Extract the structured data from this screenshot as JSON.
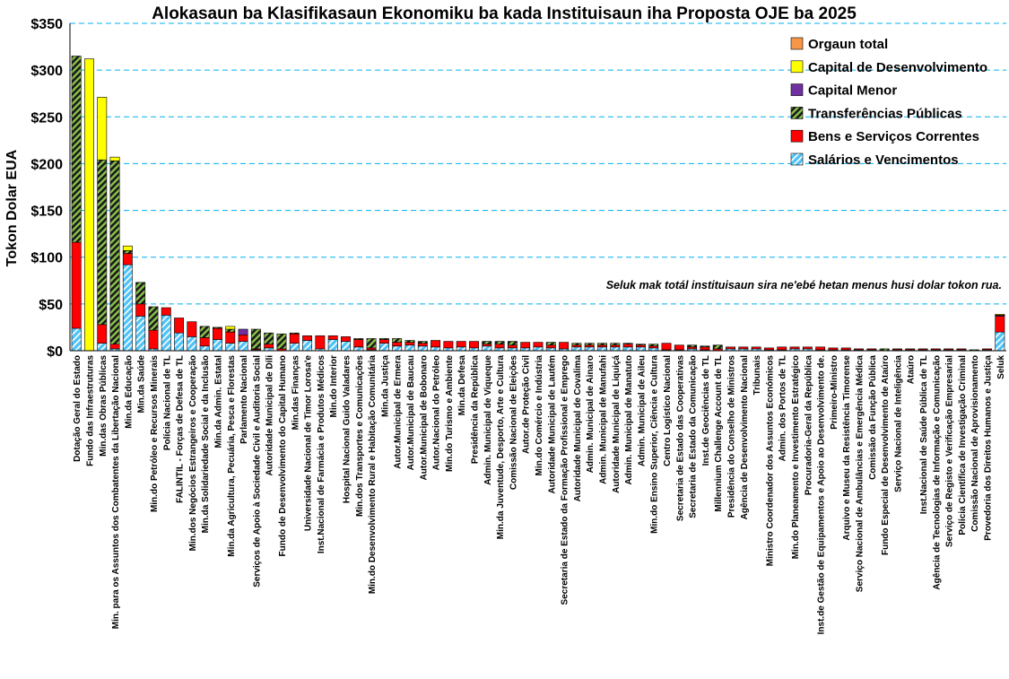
{
  "chart_data": {
    "type": "bar",
    "stacked": true,
    "title": "Alokasaun ba Klasifikasaun Ekonomiku ba kada Instituisaun iha Proposta OJE ba 2025",
    "ylabel": "Tokon Dolar EUA",
    "xlabel": "",
    "ylim": [
      0,
      350
    ],
    "yticks": [
      0,
      50,
      100,
      150,
      200,
      250,
      300,
      350
    ],
    "ytick_labels": [
      "$0",
      "$50",
      "$100",
      "$150",
      "$200",
      "$250",
      "$300",
      "$350"
    ],
    "grid": "horizontal dashed",
    "legend_position": "top-right",
    "annotation": "Seluk mak totál instituisaun sira ne'ebé hetan menus husi dolar tokon rua.",
    "categories": [
      "Dotação Geral do Estado",
      "Fundo das Infraestruturas",
      "Min.das Obras Públicas",
      "Min. para os Assuntos dos Combatentes da Libertação Nacional",
      "Min.da Educação",
      "Min.da Saúde",
      "Min.do Petróleo e Recursos Minerais",
      "Polícia Nacional de TL",
      "FALINTIL - Forças de Defesa de TL",
      "Min.dos Negócios Estrangeiros e Cooperação",
      "Min.da Solidariedade Social e da Inclusão",
      "Min.da Admin. Estatal",
      "Min.da Agricultura, Pecuária, Pesca e Florestas",
      "Parlamento Nacional",
      "Serviços de Apoio à Sociedade Civil e Auditoria Social",
      "Autoridade Municipal de Díli",
      "Fundo de Desenvolvimento do Capital Humano",
      "Min.das Finanças",
      "Universidade Nacional de Timor Lorosa'e",
      "Inst.Nacional de Farmácia e Produtos Médicos",
      "Min.do Interior",
      "Hospital Nacional Guido Valadares",
      "Min.dos Transportes e Comunicações",
      "Min.do Desenvolvimento Rural e Habitação Comunitária",
      "Min.da Justiça",
      "Autor.Municipal de Ermera",
      "Autor.Municipal de Baucau",
      "Autor.Municipal de Bobonaro",
      "Autor.Nacional do Petróleo",
      "Min.do Turismo e Ambiente",
      "Min.da Defesa",
      "Presidência da República",
      "Admin. Municipal de Viqueque",
      "Min.da Juventude, Desporto, Arte e Cultura",
      "Comissão Nacional de Eleições",
      "Autor.de Proteção Civil",
      "Min.do Comércio e Indústria",
      "Autoridade Municipal de Lautém",
      "Secretaria de Estado da Formação Profissional e Emprego",
      "Autoridade Municipal de Covalima",
      "Admin. Municipal de Ainaro",
      "Admin. Municipal de Manufahi",
      "Autoridade Municipal de Liquiçá",
      "Admin. Municipal de Manatuto",
      "Admin. Municipal de Aileu",
      "Min.do Ensino Superior, Ciência e Cultura",
      "Centro Logístico Nacional",
      "Secretaria de Estado das Cooperativas",
      "Secretaria de Estado da Comunicação",
      "Inst.de Geociências de TL",
      "Millennium Challenge Account de TL",
      "Presidência do Conselho de Ministros",
      "Agência de Desenvolvimento Nacional",
      "Tribunais",
      "Ministro Coordenador dos Assuntos Económicos",
      "Admin. dos Portos de TL",
      "Min.do Planeamento e Investimento Estratégico",
      "Procuradoria-Geral da República",
      "Inst.de Gestão de Equipamentos e Apoio ao Desenvolvimento de.",
      "Primeiro-Ministro",
      "Arquivo e Museu da Resistência Timorense",
      "Serviço Nacional de Ambulâncias e Emergência Médica",
      "Comissão da Função Pública",
      "Fundo Especial de Desenvolvimento de Ataúro",
      "Serviço Nacional de Inteligência",
      "Ataúro",
      "Inst.Nacional de Saúde Pública de TL",
      "Agência de Tecnologias de Informação e Comunicação",
      "Serviço de Registo e Verificação Empresarial",
      "Polícia Científica de Investigação Criminal",
      "Comissão Nacional de Aprovisionamento",
      "Provedoria dos Direitos Humanos e Justiça",
      "Seluk"
    ],
    "series": [
      {
        "name": "Salários e Vencimentos",
        "color": "#4FC3F7",
        "pattern": "hatch-light",
        "values": [
          24,
          0,
          8,
          2,
          92,
          37,
          2,
          38,
          19,
          15,
          5,
          12,
          8,
          10,
          1,
          3,
          0,
          8,
          11,
          2,
          12,
          10,
          4,
          1,
          8,
          5,
          6,
          5,
          4,
          3,
          4,
          3,
          5,
          3,
          3,
          3,
          4,
          3,
          2,
          4,
          4,
          4,
          4,
          4,
          4,
          3,
          1,
          1,
          2,
          1,
          0,
          2,
          2,
          2,
          1,
          1,
          2,
          2,
          1,
          1,
          1,
          1,
          1,
          0,
          1,
          1,
          1,
          1,
          1,
          1,
          0,
          1,
          20
        ]
      },
      {
        "name": "Bens e Serviços Correntes",
        "color": "#FF0000",
        "pattern": "solid",
        "values": [
          92,
          0,
          20,
          5,
          12,
          13,
          20,
          8,
          16,
          16,
          9,
          12,
          12,
          7,
          1,
          4,
          2,
          10,
          5,
          14,
          4,
          5,
          8,
          2,
          4,
          4,
          3,
          3,
          7,
          7,
          6,
          7,
          2,
          4,
          3,
          6,
          5,
          3,
          7,
          2,
          2,
          2,
          2,
          3,
          2,
          2,
          7,
          5,
          2,
          3,
          2,
          2,
          2,
          2,
          2,
          3,
          2,
          2,
          3,
          2,
          2,
          1,
          1,
          0,
          1,
          1,
          1,
          1,
          1,
          1,
          0,
          1,
          17
        ]
      },
      {
        "name": "Transferências Públicas",
        "color": "#1B5E20",
        "pattern": "hatch-dark",
        "values": [
          199,
          0,
          176,
          196,
          3,
          23,
          25,
          0,
          0,
          0,
          12,
          1,
          3,
          0,
          21,
          12,
          16,
          1,
          0,
          0,
          0,
          0,
          1,
          10,
          1,
          4,
          2,
          2,
          0,
          0,
          0,
          0,
          3,
          3,
          4,
          0,
          0,
          3,
          0,
          2,
          2,
          2,
          2,
          1,
          1,
          2,
          0,
          0,
          2,
          1,
          4,
          0,
          0,
          0,
          0,
          0,
          0,
          0,
          0,
          0,
          0,
          0,
          0,
          2,
          0,
          0,
          0,
          0,
          0,
          0,
          1,
          0,
          0
        ]
      },
      {
        "name": "Capital Menor",
        "color": "#7030A0",
        "pattern": "solid",
        "values": [
          0,
          0,
          0,
          0,
          0,
          0,
          0,
          0,
          0,
          0,
          0,
          0,
          0,
          6,
          0,
          0,
          0,
          0,
          0,
          0,
          0,
          0,
          0,
          0,
          0,
          0,
          0,
          0,
          0,
          0,
          0,
          0,
          0,
          0,
          0,
          0,
          0,
          0,
          0,
          0,
          0,
          0,
          0,
          0,
          0,
          0,
          0,
          0,
          0,
          0,
          0,
          0,
          0,
          0,
          0,
          0,
          0,
          0,
          0,
          0,
          0,
          0,
          0,
          0,
          0,
          0,
          0,
          0,
          0,
          0,
          0,
          0,
          1
        ]
      },
      {
        "name": "Capital de Desenvolvimento",
        "color": "#FFFF00",
        "pattern": "solid",
        "values": [
          0,
          312,
          67,
          4,
          5,
          0,
          0,
          0,
          0,
          0,
          0,
          0,
          3,
          0,
          0,
          0,
          0,
          0,
          0,
          0,
          0,
          0,
          0,
          0,
          0,
          0,
          0,
          0,
          0,
          0,
          0,
          0,
          0,
          0,
          0,
          0,
          0,
          0,
          0,
          0,
          0,
          0,
          0,
          0,
          0,
          0,
          0,
          0,
          0,
          0,
          0,
          0,
          0,
          0,
          0,
          0,
          0,
          0,
          0,
          0,
          0,
          0,
          0,
          0,
          0,
          0,
          0,
          0,
          0,
          0,
          0,
          0,
          1
        ]
      },
      {
        "name": "Orgaun total",
        "color": "#F79646",
        "pattern": "solid",
        "values": [
          0,
          0,
          0,
          0,
          0,
          0,
          0,
          0,
          0,
          0,
          0,
          0,
          0,
          0,
          0,
          0,
          0,
          0,
          0,
          0,
          0,
          0,
          0,
          0,
          0,
          0,
          0,
          0,
          0,
          0,
          0,
          0,
          0,
          0,
          0,
          0,
          0,
          0,
          0,
          0,
          0,
          0,
          0,
          0,
          0,
          0,
          0,
          0,
          0,
          0,
          0,
          0,
          0,
          0,
          0,
          0,
          0,
          0,
          0,
          0,
          0,
          0,
          0,
          0,
          0,
          0,
          0,
          0,
          0,
          0,
          0,
          0,
          0
        ]
      }
    ],
    "legend_order": [
      "Orgaun total",
      "Capital de Desenvolvimento",
      "Capital Menor",
      "Transferências Públicas",
      "Bens e Serviços Correntes",
      "Salários e Vencimentos"
    ]
  }
}
